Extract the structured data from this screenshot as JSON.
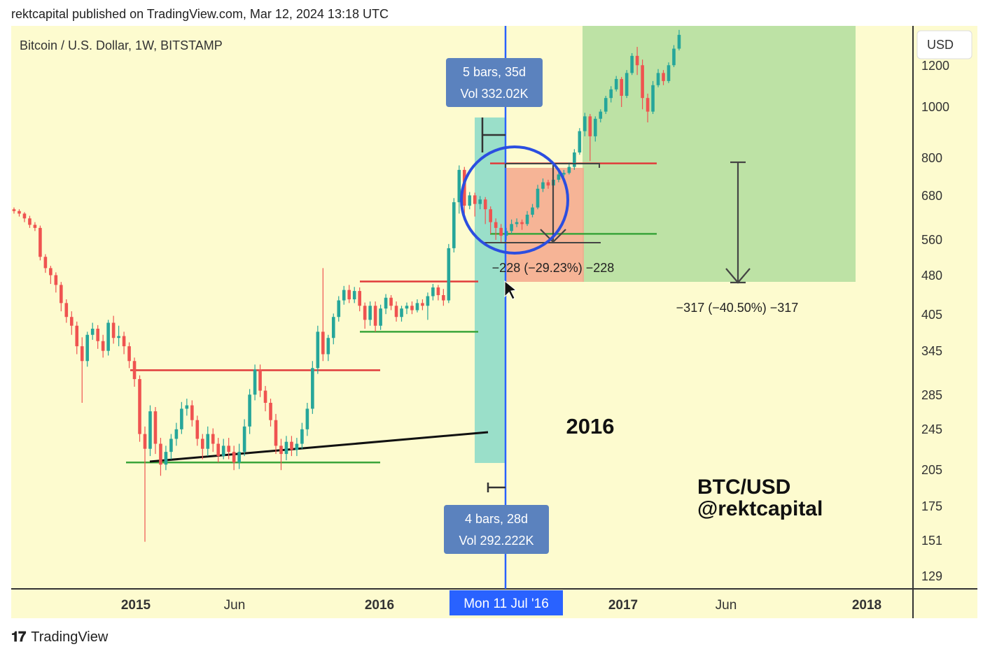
{
  "header": {
    "publish_line": "rektcapital published on TradingView.com, Mar 12, 2024 13:18 UTC"
  },
  "footer": {
    "logo_text": "TradingView"
  },
  "chart_data": {
    "type": "candlestick",
    "title": "Bitcoin / U.S. Dollar, 1W, BITSTAMP",
    "currency_button": "USD",
    "big_label": "2016",
    "watermark_lines": [
      "BTC/USD",
      "@rektcapital"
    ],
    "y_axis": {
      "scale": "log",
      "ticks": [
        "1200",
        "1000",
        "800",
        "680",
        "560",
        "480",
        "405",
        "345",
        "285",
        "245",
        "205",
        "175",
        "151",
        "129"
      ]
    },
    "x_axis": {
      "ticks": [
        {
          "label": "2015",
          "bold": true
        },
        {
          "label": "Jun",
          "bold": false
        },
        {
          "label": "2016",
          "bold": true
        },
        {
          "label": "2017",
          "bold": true
        },
        {
          "label": "Jun",
          "bold": false
        },
        {
          "label": "2018",
          "bold": true
        }
      ],
      "crosshair_label": "Mon 11 Jul '16"
    },
    "measure_top": {
      "line1": "5 bars, 35d",
      "line2": "Vol 332.02K"
    },
    "measure_bottom": {
      "line1": "4 bars, 28d",
      "line2": "Vol 292.222K"
    },
    "annotations": {
      "drawdown_small": "−228 (−29.23%) −228",
      "drawdown_large": "−317 (−40.50%) −317"
    },
    "levels": {
      "resistance_1": 317,
      "support_1": 212,
      "resistance_2": 467,
      "support_2": 375,
      "resistance_3": 782,
      "support_3": 575
    },
    "candles": [
      [
        640,
        635,
        645,
        628
      ],
      [
        635,
        628,
        640,
        620
      ],
      [
        628,
        615,
        632,
        605
      ],
      [
        615,
        598,
        622,
        590
      ],
      [
        598,
        590,
        605,
        582
      ],
      [
        590,
        520,
        596,
        512
      ],
      [
        520,
        495,
        526,
        485
      ],
      [
        495,
        480,
        500,
        462
      ],
      [
        480,
        460,
        486,
        445
      ],
      [
        460,
        425,
        466,
        410
      ],
      [
        425,
        400,
        432,
        390
      ],
      [
        400,
        385,
        410,
        370
      ],
      [
        385,
        352,
        392,
        340
      ],
      [
        352,
        330,
        366,
        275
      ],
      [
        330,
        370,
        375,
        322
      ],
      [
        370,
        380,
        390,
        362
      ],
      [
        380,
        360,
        386,
        348
      ],
      [
        360,
        345,
        370,
        335
      ],
      [
        345,
        390,
        395,
        338
      ],
      [
        390,
        365,
        402,
        356
      ],
      [
        365,
        368,
        385,
        352
      ],
      [
        368,
        352,
        375,
        340
      ],
      [
        352,
        330,
        358,
        320
      ],
      [
        330,
        305,
        335,
        295
      ],
      [
        305,
        240,
        310,
        232
      ],
      [
        240,
        225,
        248,
        150
      ],
      [
        225,
        265,
        272,
        218
      ],
      [
        265,
        230,
        270,
        220
      ],
      [
        230,
        210,
        236,
        200
      ],
      [
        210,
        222,
        228,
        205
      ],
      [
        222,
        235,
        240,
        215
      ],
      [
        235,
        245,
        252,
        228
      ],
      [
        245,
        268,
        276,
        240
      ],
      [
        268,
        272,
        280,
        260
      ],
      [
        272,
        255,
        278,
        248
      ],
      [
        255,
        235,
        260,
        228
      ],
      [
        235,
        225,
        240,
        215
      ],
      [
        225,
        240,
        248,
        218
      ],
      [
        240,
        230,
        246,
        222
      ],
      [
        230,
        218,
        236,
        212
      ],
      [
        218,
        228,
        235,
        215
      ],
      [
        228,
        222,
        236,
        215
      ],
      [
        222,
        212,
        228,
        205
      ],
      [
        212,
        222,
        230,
        206
      ],
      [
        222,
        248,
        256,
        218
      ],
      [
        248,
        285,
        292,
        240
      ],
      [
        285,
        318,
        325,
        278
      ],
      [
        318,
        290,
        325,
        282
      ],
      [
        290,
        275,
        296,
        265
      ],
      [
        275,
        255,
        280,
        248
      ],
      [
        255,
        228,
        262,
        220
      ],
      [
        228,
        220,
        235,
        205
      ],
      [
        220,
        232,
        238,
        214
      ],
      [
        232,
        224,
        238,
        218
      ],
      [
        224,
        230,
        236,
        218
      ],
      [
        230,
        245,
        252,
        225
      ],
      [
        245,
        268,
        275,
        238
      ],
      [
        268,
        320,
        330,
        262
      ],
      [
        320,
        375,
        385,
        312
      ],
      [
        375,
        340,
        495,
        330
      ],
      [
        340,
        365,
        370,
        330
      ],
      [
        365,
        400,
        406,
        355
      ],
      [
        400,
        430,
        438,
        392
      ],
      [
        430,
        450,
        458,
        422
      ],
      [
        450,
        432,
        460,
        425
      ],
      [
        432,
        448,
        456,
        425
      ],
      [
        448,
        420,
        455,
        410
      ],
      [
        420,
        395,
        426,
        380
      ],
      [
        395,
        420,
        428,
        385
      ],
      [
        420,
        385,
        428,
        375
      ],
      [
        385,
        415,
        422,
        378
      ],
      [
        415,
        435,
        442,
        405
      ],
      [
        435,
        420,
        440,
        412
      ],
      [
        420,
        400,
        428,
        392
      ],
      [
        400,
        415,
        420,
        392
      ],
      [
        415,
        420,
        426,
        405
      ],
      [
        420,
        412,
        428,
        405
      ],
      [
        412,
        425,
        432,
        408
      ],
      [
        425,
        420,
        432,
        412
      ],
      [
        420,
        438,
        445,
        395
      ],
      [
        438,
        455,
        462,
        430
      ],
      [
        455,
        440,
        460,
        430
      ],
      [
        440,
        430,
        452,
        420
      ],
      [
        430,
        540,
        550,
        425
      ],
      [
        540,
        660,
        672,
        530
      ],
      [
        660,
        760,
        775,
        628
      ],
      [
        760,
        650,
        770,
        625
      ],
      [
        650,
        680,
        690,
        640
      ],
      [
        680,
        655,
        688,
        620
      ],
      [
        655,
        668,
        678,
        640
      ],
      [
        668,
        640,
        675,
        600
      ],
      [
        640,
        605,
        648,
        575
      ],
      [
        605,
        590,
        615,
        560
      ],
      [
        590,
        570,
        600,
        555
      ],
      [
        570,
        582,
        590,
        560
      ],
      [
        582,
        600,
        612,
        575
      ],
      [
        600,
        605,
        615,
        592
      ],
      [
        605,
        600,
        612,
        585
      ],
      [
        600,
        625,
        635,
        595
      ],
      [
        625,
        645,
        655,
        618
      ],
      [
        645,
        700,
        712,
        640
      ],
      [
        700,
        720,
        732,
        690
      ],
      [
        720,
        710,
        728,
        700
      ],
      [
        710,
        728,
        736,
        702
      ],
      [
        728,
        745,
        760,
        720
      ],
      [
        745,
        750,
        760,
        738
      ],
      [
        750,
        770,
        785,
        745
      ],
      [
        770,
        820,
        832,
        760
      ],
      [
        820,
        900,
        912,
        812
      ],
      [
        900,
        960,
        975,
        880
      ],
      [
        960,
        880,
        970,
        790
      ],
      [
        880,
        950,
        960,
        860
      ],
      [
        950,
        980,
        990,
        935
      ],
      [
        980,
        1040,
        1050,
        970
      ],
      [
        1040,
        1080,
        1095,
        1020
      ],
      [
        1080,
        1130,
        1145,
        1070
      ],
      [
        1130,
        1050,
        1140,
        1000
      ],
      [
        1050,
        1160,
        1175,
        1040
      ],
      [
        1160,
        1250,
        1265,
        1150
      ],
      [
        1250,
        1200,
        1300,
        1150
      ],
      [
        1200,
        1040,
        1230,
        990
      ],
      [
        1040,
        980,
        1060,
        935
      ],
      [
        980,
        1100,
        1120,
        970
      ],
      [
        1100,
        1160,
        1180,
        1090
      ],
      [
        1160,
        1120,
        1175,
        1100
      ],
      [
        1120,
        1200,
        1215,
        1110
      ],
      [
        1200,
        1290,
        1310,
        1190
      ],
      [
        1290,
        1370,
        1400,
        1280
      ]
    ]
  }
}
